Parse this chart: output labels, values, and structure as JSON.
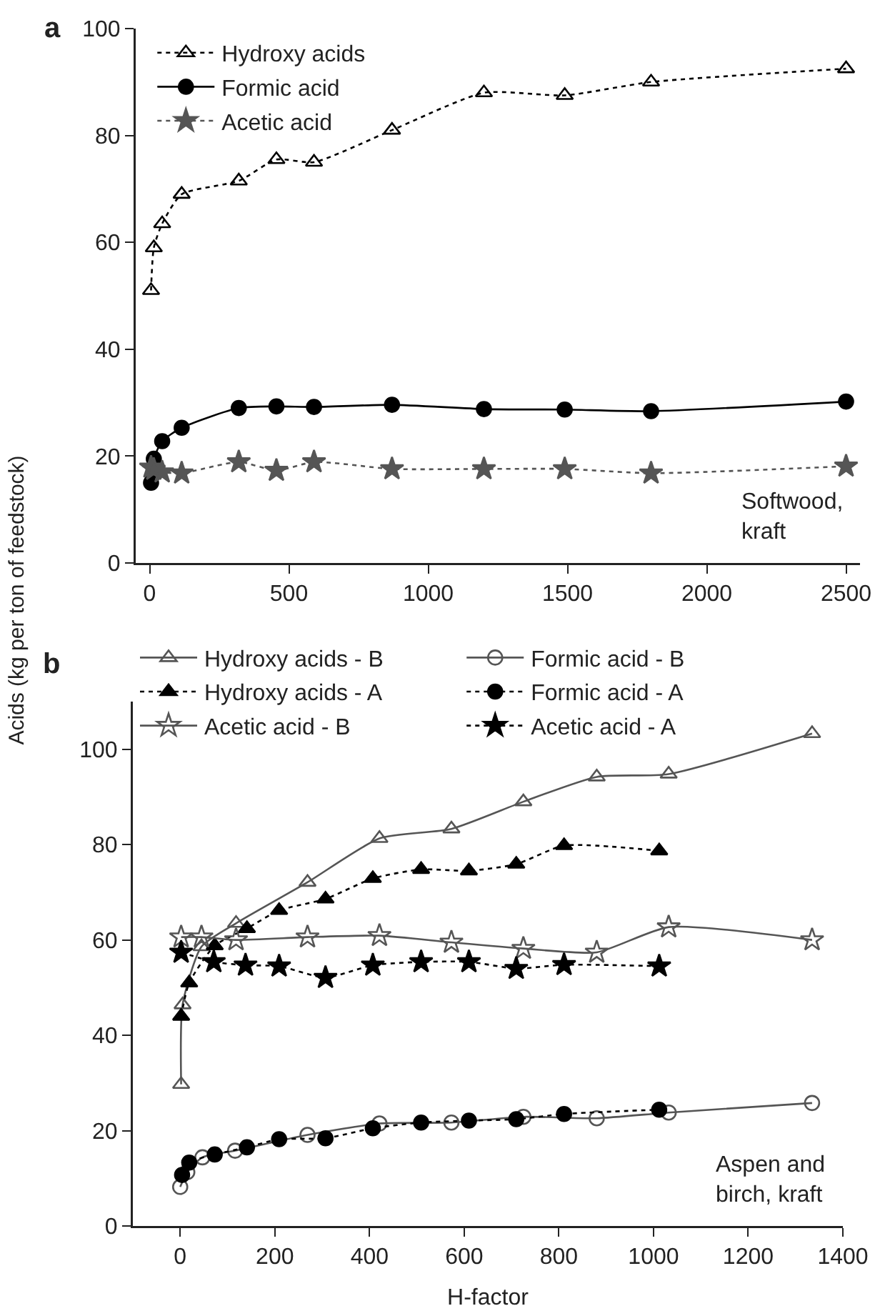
{
  "chart_data": [
    {
      "type": "line",
      "title": "a",
      "ylabel": "Acids (kg per ton of feedstock)",
      "xlim": [
        -50,
        2550
      ],
      "xticks": [
        0,
        500,
        1000,
        1500,
        2000,
        2500
      ],
      "ylim": [
        0,
        100
      ],
      "yticks": [
        0,
        20,
        40,
        60,
        80,
        100
      ],
      "grid": false,
      "legend": "top left",
      "annotations": [
        "Softwood,\nkraft"
      ],
      "series": [
        {
          "name": "Hydroxy acids",
          "color": "#000000",
          "marker": "triangle-open",
          "line_style": "dotted",
          "x": [
            5,
            15,
            45,
            115,
            320,
            455,
            590,
            870,
            1200,
            1490,
            1800,
            2500
          ],
          "values": [
            51,
            59,
            63.5,
            69,
            71.5,
            75.5,
            75,
            81,
            88,
            87.5,
            90,
            92.5
          ]
        },
        {
          "name": "Formic acid",
          "color": "#000000",
          "marker": "circle",
          "line_style": "solid",
          "x": [
            5,
            15,
            45,
            115,
            320,
            455,
            590,
            870,
            1200,
            1490,
            1800,
            2500
          ],
          "values": [
            15,
            19.5,
            22.8,
            25.3,
            29,
            29.3,
            29.2,
            29.6,
            28.8,
            28.7,
            28.4,
            30.2
          ]
        },
        {
          "name": "Acetic acid",
          "color": "#555555",
          "marker": "star",
          "line_style": "dotted",
          "x": [
            5,
            15,
            45,
            115,
            320,
            455,
            590,
            870,
            1200,
            1490,
            1800,
            2500
          ],
          "values": [
            17.9,
            17.5,
            17,
            16.8,
            18.9,
            17.3,
            18.9,
            17.6,
            17.6,
            17.6,
            16.8,
            18.1
          ]
        }
      ]
    },
    {
      "type": "line",
      "title": "b",
      "xlabel": "H-factor",
      "xlim": [
        -100,
        1400
      ],
      "xticks": [
        0,
        200,
        400,
        600,
        800,
        1000,
        1200,
        1400
      ],
      "ylim": [
        0,
        110
      ],
      "yticks": [
        0,
        20,
        40,
        60,
        80,
        100
      ],
      "grid": false,
      "legend": "top left",
      "annotations": [
        "Aspen and\nbirch, kraft"
      ],
      "series": [
        {
          "name": "Hydroxy acids - B",
          "color": "#555555",
          "marker": "triangle-open",
          "line_style": "solid",
          "x": [
            2,
            5,
            45,
            118,
            269,
            421,
            573,
            725,
            880,
            1032,
            1335
          ],
          "values": [
            29.7,
            46.4,
            58.6,
            63.5,
            72.1,
            81.3,
            83.3,
            89,
            94.2,
            94.8,
            103.3
          ]
        },
        {
          "name": "Formic acid - B",
          "color": "#555555",
          "marker": "circle-open",
          "line_style": "solid",
          "x": [
            0,
            15,
            47,
            116,
            269,
            421,
            573,
            725,
            880,
            1032,
            1335
          ],
          "values": [
            8.2,
            11.3,
            14.4,
            15.8,
            19.1,
            21.5,
            21.7,
            22.9,
            22.6,
            23.8,
            25.8
          ]
        },
        {
          "name": "Hydroxy acids - A",
          "color": "#000000",
          "marker": "triangle",
          "line_style": "dotted",
          "x": [
            2,
            19,
            73,
            141,
            209,
            307,
            407,
            509,
            610,
            710,
            811,
            1012
          ],
          "values": [
            44,
            51,
            58.8,
            62.4,
            66.2,
            68.6,
            72.9,
            74.8,
            74.5,
            75.9,
            79.8,
            78.7
          ]
        },
        {
          "name": "Formic acid - A",
          "color": "#000000",
          "marker": "circle",
          "line_style": "dotted",
          "x": [
            4,
            19,
            73,
            141,
            209,
            307,
            407,
            509,
            610,
            710,
            811,
            1012
          ],
          "values": [
            10.7,
            13.3,
            15,
            16.5,
            18.2,
            18.4,
            20.5,
            21.7,
            22.1,
            22.4,
            23.5,
            24.4
          ]
        },
        {
          "name": "Acetic acid - B",
          "color": "#555555",
          "marker": "star-open",
          "line_style": "solid",
          "x": [
            2,
            45,
            118,
            269,
            421,
            573,
            725,
            880,
            1032,
            1335
          ],
          "values": [
            60.6,
            60.6,
            60,
            60.6,
            60.9,
            59.5,
            58.2,
            57.4,
            62.7,
            60
          ]
        },
        {
          "name": "Acetic acid - A",
          "color": "#000000",
          "marker": "star",
          "line_style": "dotted",
          "x": [
            2,
            71,
            138,
            209,
            307,
            407,
            509,
            610,
            710,
            811,
            1012
          ],
          "values": [
            57.4,
            55.4,
            54.7,
            54.5,
            52.1,
            54.7,
            55.4,
            55.4,
            54,
            54.8,
            54.5
          ]
        }
      ]
    }
  ]
}
